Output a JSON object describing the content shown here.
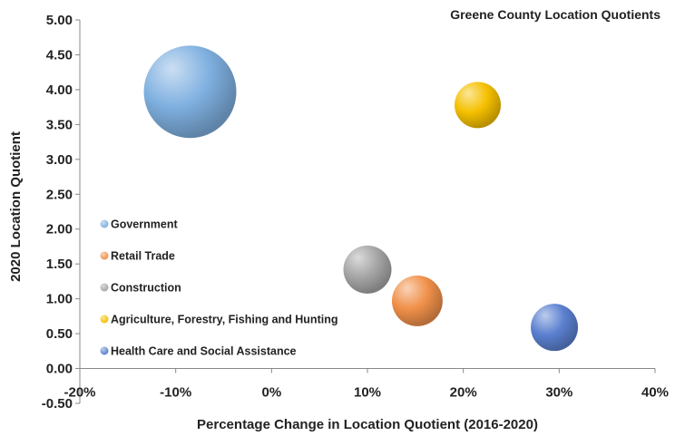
{
  "chart_data": {
    "type": "scatter",
    "title": "Greene County Location Quotients",
    "xlabel": "Percentage Change in Location Quotient (2016-2020)",
    "ylabel": "2020 Location Quotient",
    "xlim": [
      -0.2,
      0.4
    ],
    "ylim": [
      -0.5,
      5.0
    ],
    "x_ticks": [
      "-20%",
      "-10%",
      "0%",
      "10%",
      "20%",
      "30%",
      "40%"
    ],
    "x_tick_values": [
      -0.2,
      -0.1,
      0.0,
      0.1,
      0.2,
      0.3,
      0.4
    ],
    "y_ticks": [
      "5.00",
      "4.50",
      "4.00",
      "3.50",
      "3.00",
      "2.50",
      "2.00",
      "1.50",
      "1.00",
      "0.50",
      "0.00",
      "-0.50"
    ],
    "y_tick_values": [
      5.0,
      4.5,
      4.0,
      3.5,
      3.0,
      2.5,
      2.0,
      1.5,
      1.0,
      0.5,
      0.0,
      -0.5
    ],
    "legend_position": "left",
    "series": [
      {
        "name": "Government",
        "x": -0.085,
        "y": 3.97,
        "size": 1.0,
        "color": "#7fb0e0"
      },
      {
        "name": "Retail Trade",
        "x": 0.152,
        "y": 0.97,
        "size": 0.3,
        "color": "#f0904a"
      },
      {
        "name": "Construction",
        "x": 0.1,
        "y": 1.42,
        "size": 0.27,
        "color": "#a6a6a6"
      },
      {
        "name": "Agriculture, Forestry, Fishing and Hunting",
        "x": 0.215,
        "y": 3.78,
        "size": 0.25,
        "color": "#f5c000"
      },
      {
        "name": "Health Care and Social Assistance",
        "x": 0.295,
        "y": 0.59,
        "size": 0.26,
        "color": "#5b80d0"
      }
    ]
  }
}
